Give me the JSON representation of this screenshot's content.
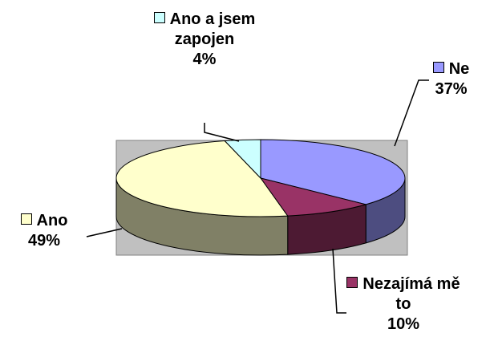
{
  "chart_data": {
    "type": "pie",
    "categories": [
      "Ne",
      "Nezajímá mě to",
      "Ano",
      "Ano a jsem zapojen"
    ],
    "values": [
      37,
      10,
      49,
      4
    ],
    "value_labels": [
      "37%",
      "10%",
      "49%",
      "4%"
    ],
    "colors": [
      "#9999ff",
      "#993366",
      "#ffffcc",
      "#ccffff"
    ]
  }
}
